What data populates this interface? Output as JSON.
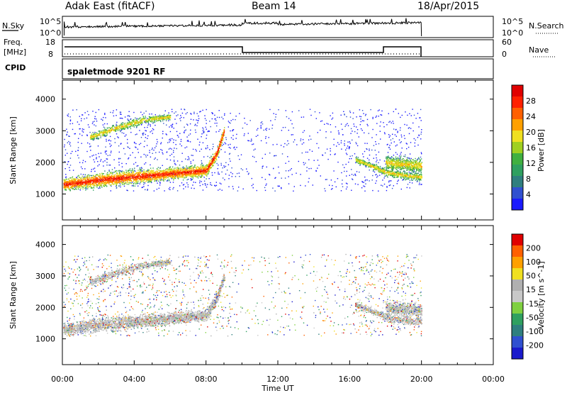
{
  "header": {
    "station": "Adak East (fitACF)",
    "beam": "Beam 14",
    "date": "18/Apr/2015"
  },
  "labels": {
    "nsky": "N.Sky",
    "nsearch": "N.Search",
    "freq": "Freq.",
    "mhz": "[MHz]",
    "nave": "Nave",
    "cpid": "CPID",
    "mode": "spaletmode 9201 RF",
    "nsky_hi": "10^5",
    "nsky_lo": "10^0",
    "freq_hi": "18",
    "freq_lo": "8",
    "nave_hi": "60",
    "nave_lo": "0"
  },
  "colors": {
    "power": [
      "#1a1aff",
      "#3050d0",
      "#2f7f7f",
      "#2fa060",
      "#40b040",
      "#a0d020",
      "#f0e020",
      "#ffa000",
      "#ff6000",
      "#ff2000",
      "#e00000"
    ],
    "velocity": [
      "#1a1acc",
      "#3050d0",
      "#2f7f7f",
      "#2fa060",
      "#7fd040",
      "#c8c8c8",
      "#b0b0b0",
      "#f0e020",
      "#ffa000",
      "#ff6000",
      "#e00000"
    ]
  },
  "chart_data": [
    {
      "type": "heatmap",
      "title": "Power",
      "xlabel": "Time UT",
      "ylabel": "Slant Range [km]",
      "x_ticks": [
        "00:00",
        "04:00",
        "08:00",
        "12:00",
        "16:00",
        "20:00",
        "00:00"
      ],
      "xlim_hours": [
        0,
        24
      ],
      "y_ticks": [
        1000,
        2000,
        3000,
        4000
      ],
      "ylim": [
        180,
        4600
      ],
      "colorbar": {
        "label": "Power [dB]",
        "ticks": [
          4,
          8,
          12,
          16,
          20,
          24,
          28
        ],
        "range": [
          0,
          30
        ]
      },
      "echo_bands": [
        {
          "x_hours": [
            0.0,
            2.0,
            4.0,
            6.0,
            8.0,
            8.6,
            9.0
          ],
          "center_km": [
            1300,
            1450,
            1550,
            1650,
            1750,
            2300,
            3000
          ],
          "width_km": [
            300,
            350,
            350,
            300,
            300,
            300,
            200
          ]
        },
        {
          "x_hours": [
            1.5,
            3.0,
            4.5,
            6.0
          ],
          "center_km": [
            2800,
            3100,
            3350,
            3450
          ],
          "width_km": [
            200,
            200,
            200,
            150
          ]
        },
        {
          "x_hours": [
            16.3,
            17.2,
            18.0,
            19.0,
            20.0
          ],
          "center_km": [
            2100,
            1900,
            1700,
            1600,
            1550
          ],
          "width_km": [
            150,
            150,
            200,
            200,
            200
          ]
        },
        {
          "x_hours": [
            18.0,
            19.0,
            20.0
          ],
          "center_km": [
            2000,
            1950,
            1900
          ],
          "width_km": [
            350,
            350,
            350
          ]
        }
      ]
    },
    {
      "type": "heatmap",
      "title": "Velocity",
      "xlabel": "Time UT",
      "ylabel": "Slant Range [km]",
      "x_ticks": [
        "00:00",
        "04:00",
        "08:00",
        "12:00",
        "16:00",
        "20:00",
        "00:00"
      ],
      "xlim_hours": [
        0,
        24
      ],
      "y_ticks": [
        1000,
        2000,
        3000,
        4000
      ],
      "ylim": [
        180,
        4600
      ],
      "colorbar": {
        "label": "Velocity [m s^-1]",
        "ticks": [
          200,
          100,
          50,
          15,
          -15,
          -50,
          -100,
          -200
        ]
      }
    }
  ]
}
